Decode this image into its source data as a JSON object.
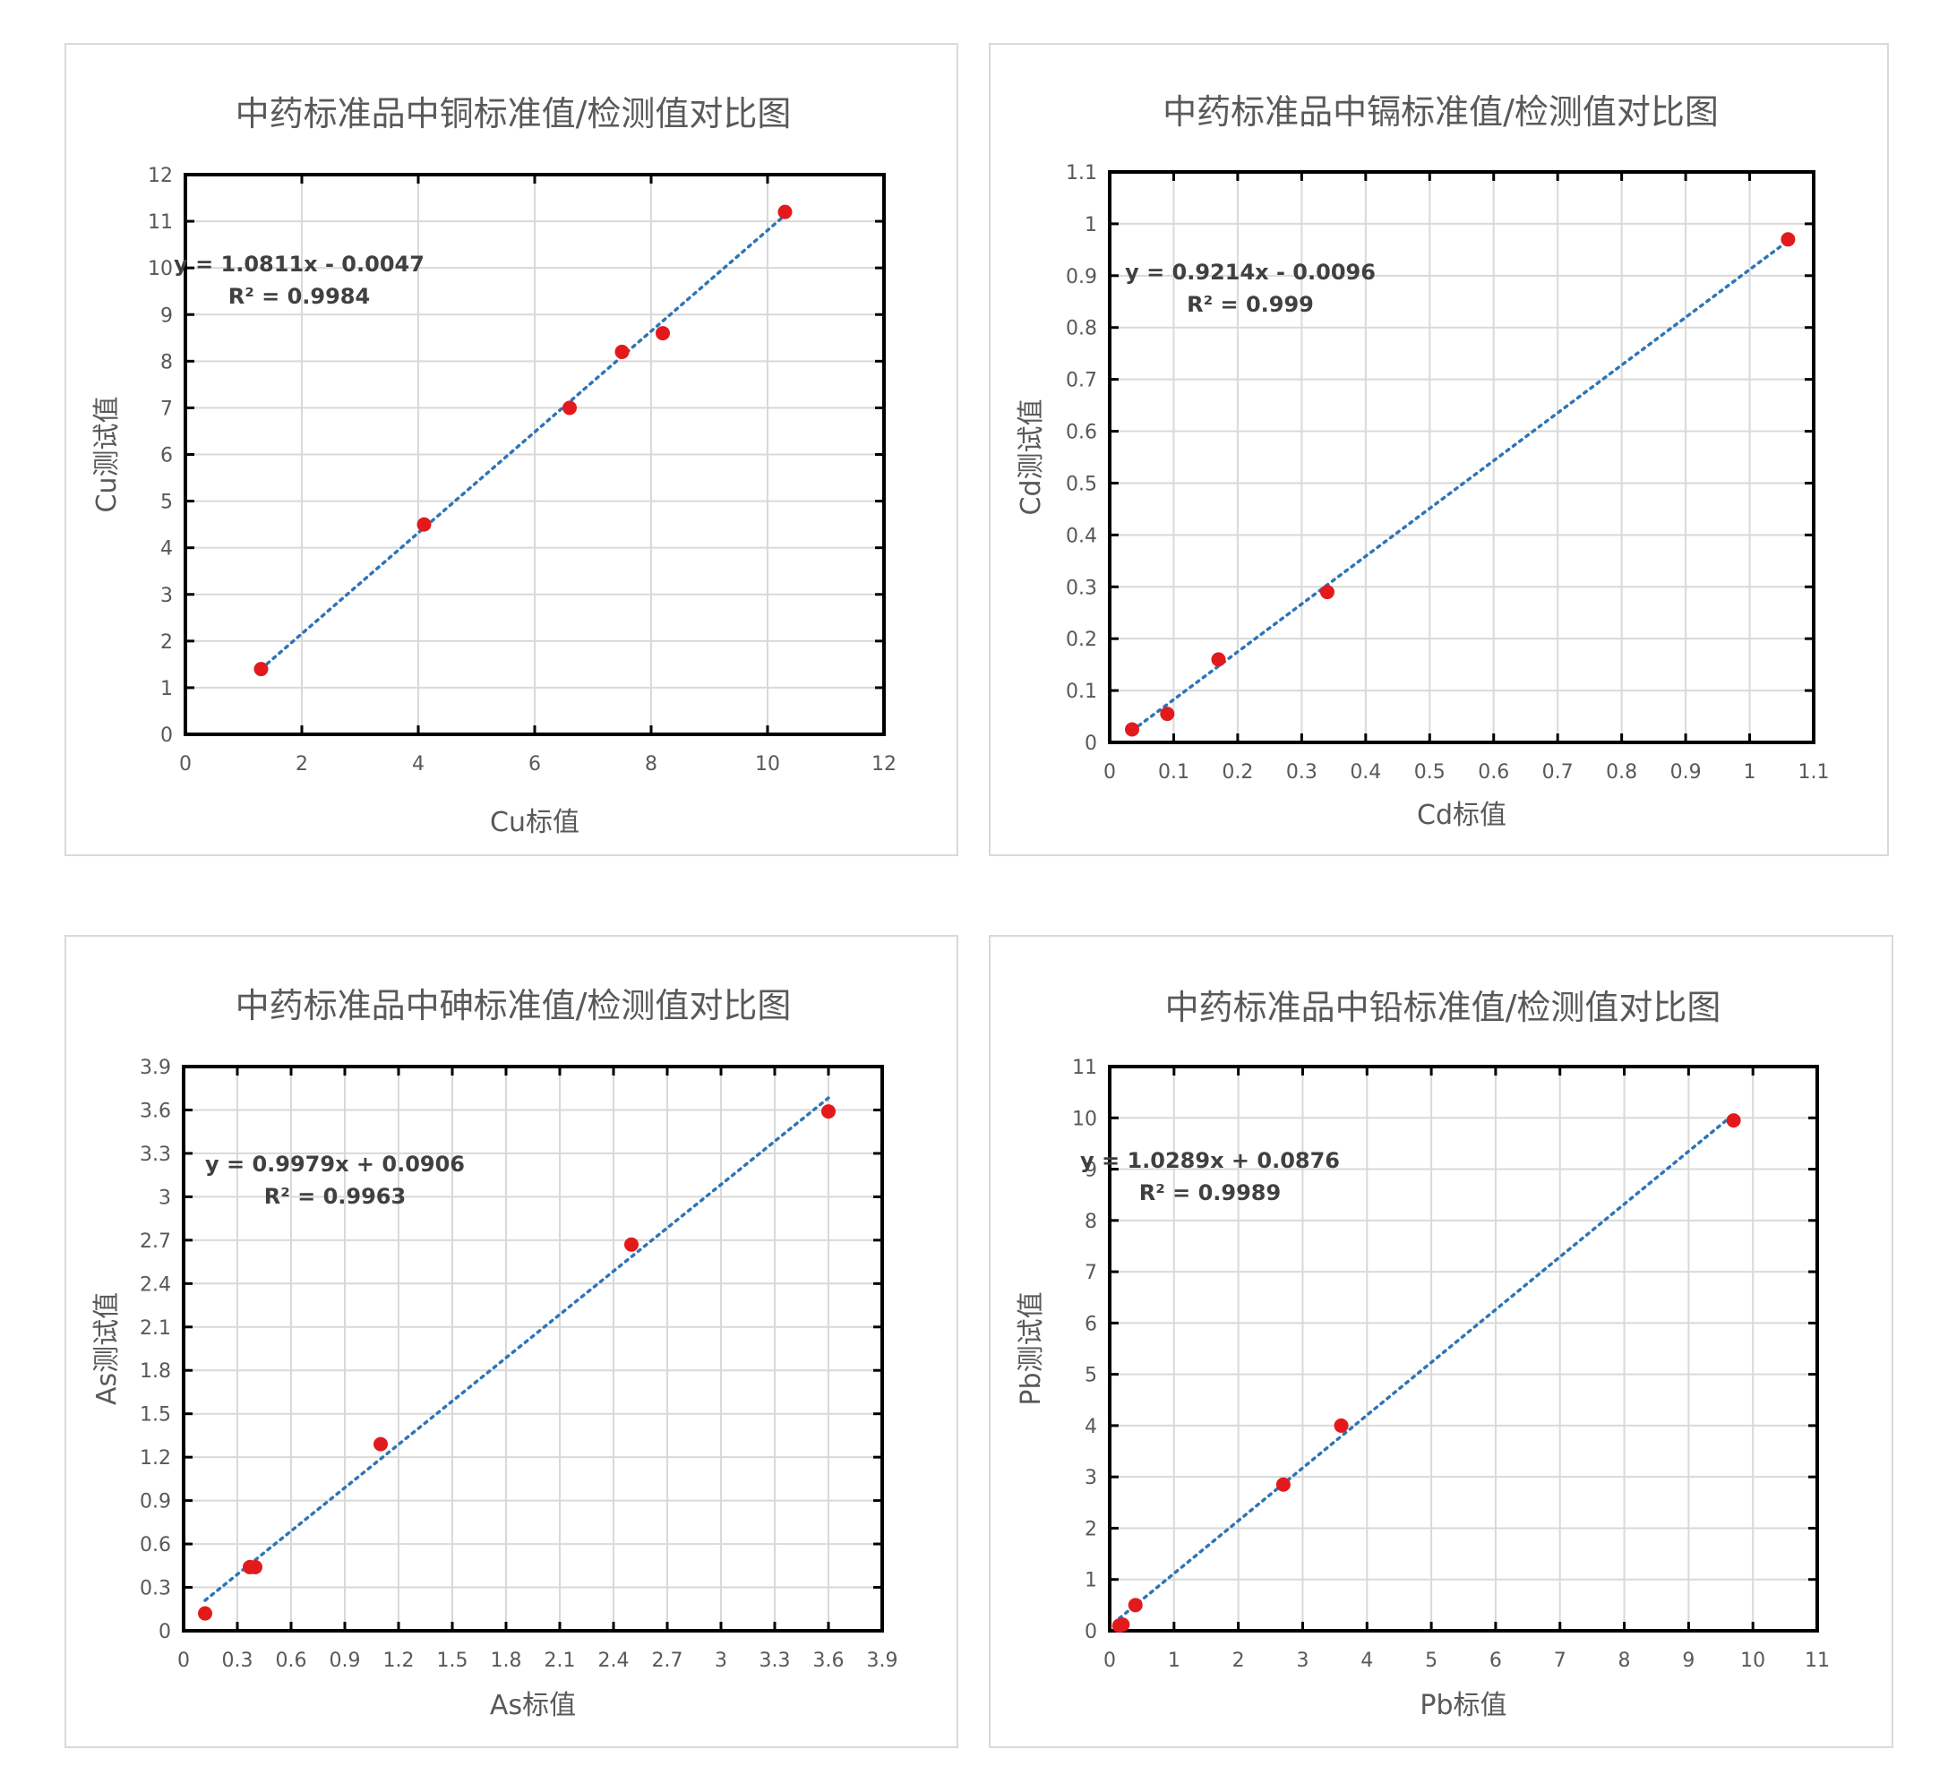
{
  "chart_data": [
    {
      "type": "scatter",
      "title": "中药标准品中铜标准值/检测值对比图",
      "xlabel": "Cu标值",
      "ylabel": "Cu测试值",
      "xlim": [
        0,
        12
      ],
      "ylim": [
        0,
        12
      ],
      "xticks": [
        "0",
        "2",
        "4",
        "6",
        "8",
        "10",
        "12"
      ],
      "yticks": [
        "0",
        "1",
        "2",
        "3",
        "4",
        "5",
        "6",
        "7",
        "8",
        "9",
        "10",
        "11",
        "12"
      ],
      "grid": true,
      "points": [
        {
          "x": 1.3,
          "y": 1.4
        },
        {
          "x": 4.1,
          "y": 4.5
        },
        {
          "x": 6.6,
          "y": 7.0
        },
        {
          "x": 7.5,
          "y": 8.2
        },
        {
          "x": 8.2,
          "y": 8.6
        },
        {
          "x": 10.3,
          "y": 11.2
        }
      ],
      "trendline": {
        "slope": 1.0811,
        "intercept": -0.0047,
        "x_range": [
          1.3,
          10.3
        ]
      },
      "equation": "y = 1.0811x - 0.0047",
      "r2": "R² = 0.9984",
      "point_color": "#e31a1c",
      "trend_color": "#2e75b6"
    },
    {
      "type": "scatter",
      "title": "中药标准品中镉标准值/检测值对比图",
      "xlabel": "Cd标值",
      "ylabel": "Cd测试值",
      "xlim": [
        0,
        1.1
      ],
      "ylim": [
        0,
        1.1
      ],
      "xticks": [
        "0",
        "0.1",
        "0.2",
        "0.3",
        "0.4",
        "0.5",
        "0.6",
        "0.7",
        "0.8",
        "0.9",
        "1",
        "1.1"
      ],
      "yticks": [
        "0",
        "0.1",
        "0.2",
        "0.3",
        "0.4",
        "0.5",
        "0.6",
        "0.7",
        "0.8",
        "0.9",
        "1",
        "1.1"
      ],
      "grid": true,
      "points": [
        {
          "x": 0.035,
          "y": 0.025
        },
        {
          "x": 0.09,
          "y": 0.055
        },
        {
          "x": 0.17,
          "y": 0.16
        },
        {
          "x": 0.34,
          "y": 0.29
        },
        {
          "x": 1.06,
          "y": 0.97
        }
      ],
      "trendline": {
        "slope": 0.9214,
        "intercept": -0.0096,
        "x_range": [
          0.035,
          1.06
        ]
      },
      "equation": "y = 0.9214x - 0.0096",
      "r2": "R² = 0.999",
      "point_color": "#e31a1c",
      "trend_color": "#2e75b6"
    },
    {
      "type": "scatter",
      "title": "中药标准品中砷标准值/检测值对比图",
      "xlabel": "As标值",
      "ylabel": "As测试值",
      "xlim": [
        0,
        3.9
      ],
      "ylim": [
        0,
        3.9
      ],
      "xticks": [
        "0",
        "0.3",
        "0.6",
        "0.9",
        "1.2",
        "1.5",
        "1.8",
        "2.1",
        "2.4",
        "2.7",
        "3",
        "3.3",
        "3.6",
        "3.9"
      ],
      "yticks": [
        "0",
        "0.3",
        "0.6",
        "0.9",
        "1.2",
        "1.5",
        "1.8",
        "2.1",
        "2.4",
        "2.7",
        "3",
        "3.3",
        "3.6",
        "3.9"
      ],
      "grid": true,
      "points": [
        {
          "x": 0.12,
          "y": 0.12
        },
        {
          "x": 0.37,
          "y": 0.44
        },
        {
          "x": 0.4,
          "y": 0.44
        },
        {
          "x": 1.1,
          "y": 1.29
        },
        {
          "x": 2.5,
          "y": 2.67
        },
        {
          "x": 3.6,
          "y": 3.59
        }
      ],
      "trendline": {
        "slope": 0.9979,
        "intercept": 0.0906,
        "x_range": [
          0.12,
          3.6
        ]
      },
      "equation": "y = 0.9979x + 0.0906",
      "r2": "R² = 0.9963",
      "point_color": "#e31a1c",
      "trend_color": "#2e75b6"
    },
    {
      "type": "scatter",
      "title": "中药标准品中铅标准值/检测值对比图",
      "xlabel": "Pb标值",
      "ylabel": "Pb测试值",
      "xlim": [
        0,
        11
      ],
      "ylim": [
        0,
        11
      ],
      "xticks": [
        "0",
        "1",
        "2",
        "3",
        "4",
        "5",
        "6",
        "7",
        "8",
        "9",
        "10",
        "11"
      ],
      "yticks": [
        "0",
        "1",
        "2",
        "3",
        "4",
        "5",
        "6",
        "7",
        "8",
        "9",
        "10",
        "11"
      ],
      "grid": true,
      "points": [
        {
          "x": 0.15,
          "y": 0.1
        },
        {
          "x": 0.2,
          "y": 0.12
        },
        {
          "x": 0.4,
          "y": 0.5
        },
        {
          "x": 2.7,
          "y": 2.85
        },
        {
          "x": 3.6,
          "y": 4.0
        },
        {
          "x": 9.7,
          "y": 9.95
        }
      ],
      "trendline": {
        "slope": 1.0289,
        "intercept": 0.0876,
        "x_range": [
          0.15,
          9.7
        ]
      },
      "equation": "y = 1.0289x + 0.0876",
      "r2": "R² = 0.9989",
      "point_color": "#e31a1c",
      "trend_color": "#2e75b6"
    }
  ]
}
